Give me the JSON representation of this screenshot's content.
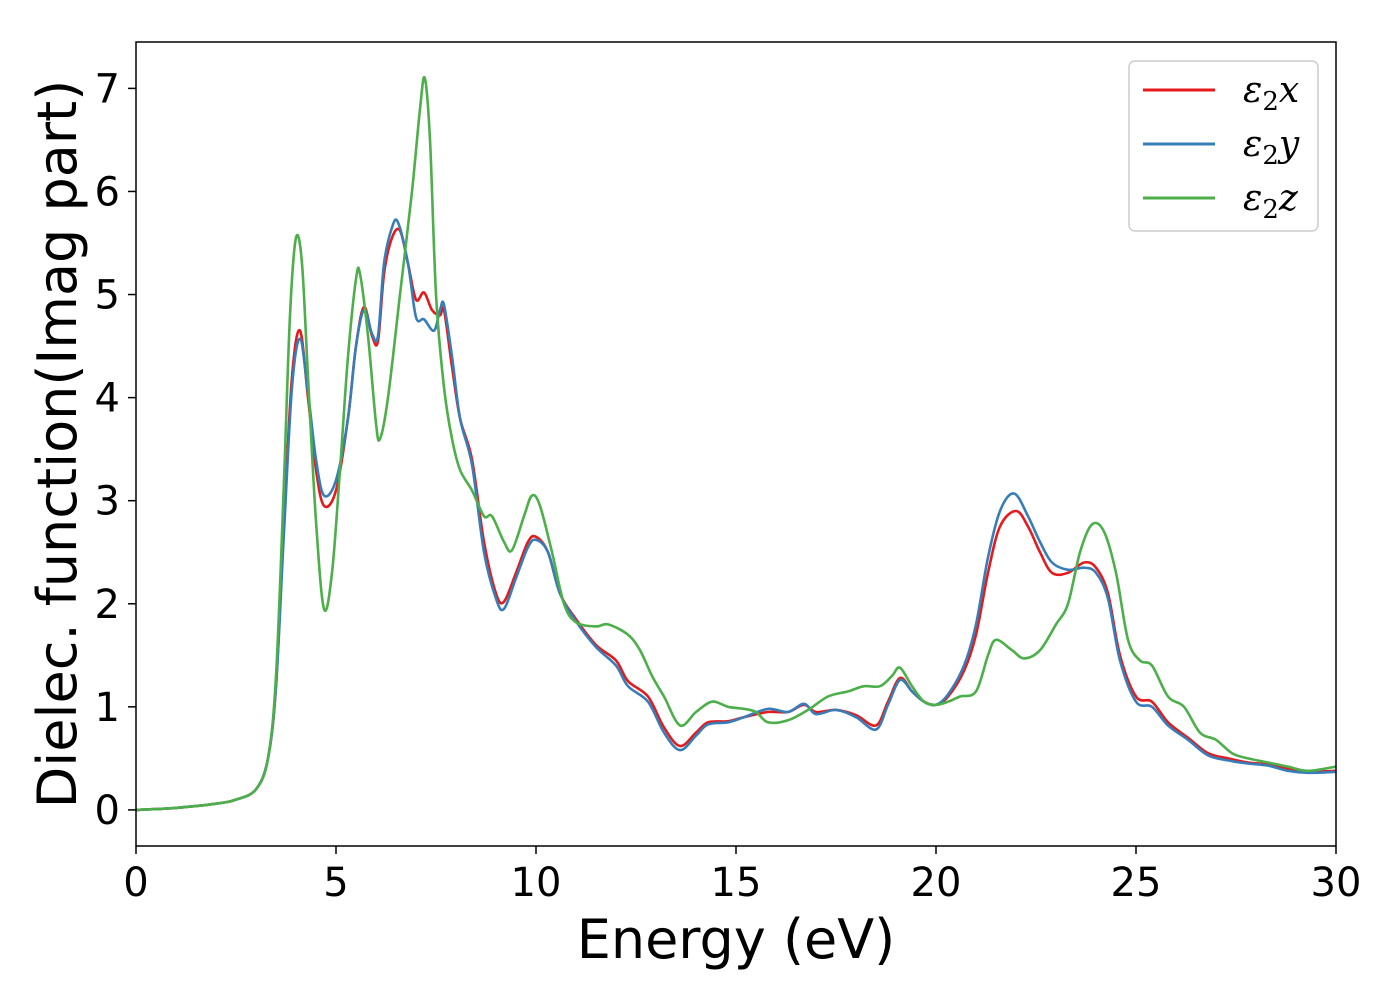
{
  "chart_data": {
    "type": "line",
    "xlabel": "Energy (eV)",
    "ylabel": "Dielec. function(Imag part)",
    "xlim": [
      0,
      30
    ],
    "ylim": [
      -0.35,
      7.45
    ],
    "xticks": [
      0,
      5,
      10,
      15,
      20,
      25,
      30
    ],
    "yticks": [
      0,
      1,
      2,
      3,
      4,
      5,
      6,
      7
    ],
    "grid": false,
    "legend_position": "top-right",
    "series": [
      {
        "name": "ε₂x",
        "legend_base": "ε",
        "legend_sub": "2",
        "legend_suffix": "x",
        "color": "#e41a1c",
        "points": [
          [
            0,
            0.0
          ],
          [
            1,
            0.02
          ],
          [
            2,
            0.06
          ],
          [
            2.5,
            0.1
          ],
          [
            3,
            0.2
          ],
          [
            3.3,
            0.5
          ],
          [
            3.5,
            1.2
          ],
          [
            3.7,
            2.8
          ],
          [
            3.9,
            4.2
          ],
          [
            4.1,
            4.65
          ],
          [
            4.3,
            4.0
          ],
          [
            4.5,
            3.3
          ],
          [
            4.7,
            2.95
          ],
          [
            5.0,
            3.1
          ],
          [
            5.3,
            3.8
          ],
          [
            5.5,
            4.5
          ],
          [
            5.7,
            4.88
          ],
          [
            5.9,
            4.6
          ],
          [
            6.05,
            4.55
          ],
          [
            6.2,
            5.2
          ],
          [
            6.4,
            5.55
          ],
          [
            6.6,
            5.62
          ],
          [
            6.8,
            5.3
          ],
          [
            7.0,
            4.95
          ],
          [
            7.2,
            5.02
          ],
          [
            7.4,
            4.85
          ],
          [
            7.6,
            4.8
          ],
          [
            7.7,
            4.85
          ],
          [
            7.9,
            4.3
          ],
          [
            8.1,
            3.8
          ],
          [
            8.4,
            3.4
          ],
          [
            8.7,
            2.6
          ],
          [
            9.0,
            2.1
          ],
          [
            9.2,
            2.02
          ],
          [
            9.5,
            2.3
          ],
          [
            9.8,
            2.6
          ],
          [
            10.0,
            2.65
          ],
          [
            10.3,
            2.5
          ],
          [
            10.6,
            2.1
          ],
          [
            11.0,
            1.85
          ],
          [
            11.5,
            1.6
          ],
          [
            12.0,
            1.45
          ],
          [
            12.3,
            1.25
          ],
          [
            12.8,
            1.1
          ],
          [
            13.2,
            0.8
          ],
          [
            13.6,
            0.62
          ],
          [
            14.0,
            0.75
          ],
          [
            14.3,
            0.85
          ],
          [
            14.8,
            0.86
          ],
          [
            15.2,
            0.9
          ],
          [
            15.8,
            0.95
          ],
          [
            16.3,
            0.95
          ],
          [
            16.7,
            1.02
          ],
          [
            17.0,
            0.95
          ],
          [
            17.5,
            0.97
          ],
          [
            18.0,
            0.92
          ],
          [
            18.5,
            0.82
          ],
          [
            18.8,
            1.05
          ],
          [
            19.1,
            1.28
          ],
          [
            19.4,
            1.15
          ],
          [
            19.7,
            1.05
          ],
          [
            20.0,
            1.02
          ],
          [
            20.3,
            1.1
          ],
          [
            20.7,
            1.35
          ],
          [
            21.0,
            1.7
          ],
          [
            21.3,
            2.3
          ],
          [
            21.6,
            2.75
          ],
          [
            22.0,
            2.9
          ],
          [
            22.3,
            2.75
          ],
          [
            22.6,
            2.5
          ],
          [
            22.9,
            2.3
          ],
          [
            23.3,
            2.3
          ],
          [
            23.7,
            2.4
          ],
          [
            24.0,
            2.35
          ],
          [
            24.3,
            2.1
          ],
          [
            24.6,
            1.5
          ],
          [
            25.0,
            1.1
          ],
          [
            25.4,
            1.05
          ],
          [
            25.8,
            0.85
          ],
          [
            26.3,
            0.7
          ],
          [
            26.8,
            0.55
          ],
          [
            27.3,
            0.5
          ],
          [
            27.8,
            0.46
          ],
          [
            28.3,
            0.44
          ],
          [
            28.8,
            0.4
          ],
          [
            29.3,
            0.37
          ],
          [
            30.0,
            0.38
          ]
        ]
      },
      {
        "name": "ε₂y",
        "legend_base": "ε",
        "legend_sub": "2",
        "legend_suffix": "y",
        "color": "#377eb8",
        "points": [
          [
            0,
            0.0
          ],
          [
            1,
            0.02
          ],
          [
            2,
            0.06
          ],
          [
            2.5,
            0.1
          ],
          [
            3,
            0.2
          ],
          [
            3.3,
            0.5
          ],
          [
            3.5,
            1.2
          ],
          [
            3.7,
            2.7
          ],
          [
            3.9,
            4.1
          ],
          [
            4.1,
            4.57
          ],
          [
            4.3,
            4.05
          ],
          [
            4.5,
            3.4
          ],
          [
            4.7,
            3.05
          ],
          [
            5.0,
            3.2
          ],
          [
            5.3,
            3.8
          ],
          [
            5.5,
            4.5
          ],
          [
            5.7,
            4.85
          ],
          [
            5.9,
            4.62
          ],
          [
            6.05,
            4.6
          ],
          [
            6.2,
            5.3
          ],
          [
            6.4,
            5.65
          ],
          [
            6.55,
            5.7
          ],
          [
            6.8,
            5.3
          ],
          [
            7.0,
            4.78
          ],
          [
            7.2,
            4.76
          ],
          [
            7.45,
            4.65
          ],
          [
            7.6,
            4.85
          ],
          [
            7.7,
            4.9
          ],
          [
            7.9,
            4.4
          ],
          [
            8.1,
            3.8
          ],
          [
            8.4,
            3.35
          ],
          [
            8.7,
            2.5
          ],
          [
            9.0,
            2.05
          ],
          [
            9.2,
            1.95
          ],
          [
            9.5,
            2.25
          ],
          [
            9.8,
            2.55
          ],
          [
            10.0,
            2.62
          ],
          [
            10.3,
            2.5
          ],
          [
            10.6,
            2.1
          ],
          [
            11.0,
            1.83
          ],
          [
            11.5,
            1.58
          ],
          [
            12.0,
            1.4
          ],
          [
            12.3,
            1.2
          ],
          [
            12.8,
            1.05
          ],
          [
            13.2,
            0.75
          ],
          [
            13.6,
            0.58
          ],
          [
            14.0,
            0.72
          ],
          [
            14.3,
            0.83
          ],
          [
            14.8,
            0.85
          ],
          [
            15.2,
            0.9
          ],
          [
            15.8,
            0.98
          ],
          [
            16.3,
            0.95
          ],
          [
            16.7,
            1.03
          ],
          [
            17.0,
            0.93
          ],
          [
            17.5,
            0.97
          ],
          [
            18.0,
            0.9
          ],
          [
            18.5,
            0.78
          ],
          [
            18.8,
            1.02
          ],
          [
            19.1,
            1.26
          ],
          [
            19.4,
            1.15
          ],
          [
            19.7,
            1.05
          ],
          [
            20.0,
            1.02
          ],
          [
            20.3,
            1.12
          ],
          [
            20.7,
            1.4
          ],
          [
            21.0,
            1.8
          ],
          [
            21.3,
            2.45
          ],
          [
            21.6,
            2.9
          ],
          [
            21.95,
            3.07
          ],
          [
            22.3,
            2.85
          ],
          [
            22.6,
            2.6
          ],
          [
            22.9,
            2.4
          ],
          [
            23.3,
            2.33
          ],
          [
            23.7,
            2.35
          ],
          [
            24.0,
            2.3
          ],
          [
            24.3,
            2.05
          ],
          [
            24.6,
            1.45
          ],
          [
            25.0,
            1.05
          ],
          [
            25.4,
            1.0
          ],
          [
            25.8,
            0.82
          ],
          [
            26.3,
            0.68
          ],
          [
            26.8,
            0.53
          ],
          [
            27.3,
            0.48
          ],
          [
            27.8,
            0.45
          ],
          [
            28.3,
            0.43
          ],
          [
            28.8,
            0.38
          ],
          [
            29.3,
            0.36
          ],
          [
            30.0,
            0.37
          ]
        ]
      },
      {
        "name": "ε₂z",
        "legend_base": "ε",
        "legend_sub": "2",
        "legend_suffix": "z",
        "color": "#4daf4a",
        "points": [
          [
            0,
            0.0
          ],
          [
            1,
            0.02
          ],
          [
            2,
            0.06
          ],
          [
            2.5,
            0.1
          ],
          [
            3,
            0.2
          ],
          [
            3.3,
            0.5
          ],
          [
            3.5,
            1.3
          ],
          [
            3.7,
            3.2
          ],
          [
            3.85,
            4.8
          ],
          [
            4.0,
            5.55
          ],
          [
            4.15,
            5.3
          ],
          [
            4.3,
            4.2
          ],
          [
            4.5,
            2.8
          ],
          [
            4.7,
            1.95
          ],
          [
            4.9,
            2.3
          ],
          [
            5.1,
            3.3
          ],
          [
            5.3,
            4.4
          ],
          [
            5.5,
            5.15
          ],
          [
            5.6,
            5.2
          ],
          [
            5.8,
            4.6
          ],
          [
            6.0,
            3.75
          ],
          [
            6.1,
            3.6
          ],
          [
            6.3,
            4.0
          ],
          [
            6.6,
            5.0
          ],
          [
            6.9,
            6.0
          ],
          [
            7.1,
            6.8
          ],
          [
            7.22,
            7.1
          ],
          [
            7.35,
            6.5
          ],
          [
            7.5,
            5.0
          ],
          [
            7.7,
            4.1
          ],
          [
            7.9,
            3.6
          ],
          [
            8.1,
            3.3
          ],
          [
            8.4,
            3.1
          ],
          [
            8.7,
            2.85
          ],
          [
            8.9,
            2.85
          ],
          [
            9.2,
            2.6
          ],
          [
            9.4,
            2.52
          ],
          [
            9.7,
            2.85
          ],
          [
            9.9,
            3.05
          ],
          [
            10.1,
            2.95
          ],
          [
            10.4,
            2.5
          ],
          [
            10.7,
            2.0
          ],
          [
            11.0,
            1.82
          ],
          [
            11.5,
            1.78
          ],
          [
            11.8,
            1.8
          ],
          [
            12.3,
            1.7
          ],
          [
            12.6,
            1.55
          ],
          [
            12.9,
            1.3
          ],
          [
            13.2,
            1.1
          ],
          [
            13.6,
            0.82
          ],
          [
            14.0,
            0.95
          ],
          [
            14.4,
            1.05
          ],
          [
            14.8,
            1.0
          ],
          [
            15.2,
            0.98
          ],
          [
            15.5,
            0.95
          ],
          [
            15.8,
            0.85
          ],
          [
            16.3,
            0.87
          ],
          [
            16.8,
            0.97
          ],
          [
            17.3,
            1.1
          ],
          [
            17.8,
            1.15
          ],
          [
            18.2,
            1.2
          ],
          [
            18.6,
            1.2
          ],
          [
            18.9,
            1.3
          ],
          [
            19.1,
            1.38
          ],
          [
            19.4,
            1.2
          ],
          [
            19.7,
            1.05
          ],
          [
            20.0,
            1.02
          ],
          [
            20.3,
            1.05
          ],
          [
            20.6,
            1.1
          ],
          [
            21.0,
            1.15
          ],
          [
            21.3,
            1.5
          ],
          [
            21.5,
            1.65
          ],
          [
            21.9,
            1.55
          ],
          [
            22.2,
            1.47
          ],
          [
            22.6,
            1.55
          ],
          [
            23.0,
            1.8
          ],
          [
            23.3,
            2.0
          ],
          [
            23.6,
            2.5
          ],
          [
            23.9,
            2.77
          ],
          [
            24.2,
            2.7
          ],
          [
            24.5,
            2.3
          ],
          [
            24.8,
            1.65
          ],
          [
            25.1,
            1.45
          ],
          [
            25.4,
            1.4
          ],
          [
            25.8,
            1.1
          ],
          [
            26.2,
            1.0
          ],
          [
            26.6,
            0.75
          ],
          [
            27.0,
            0.68
          ],
          [
            27.4,
            0.55
          ],
          [
            27.8,
            0.5
          ],
          [
            28.3,
            0.46
          ],
          [
            28.8,
            0.42
          ],
          [
            29.3,
            0.38
          ],
          [
            30.0,
            0.42
          ]
        ]
      }
    ]
  }
}
